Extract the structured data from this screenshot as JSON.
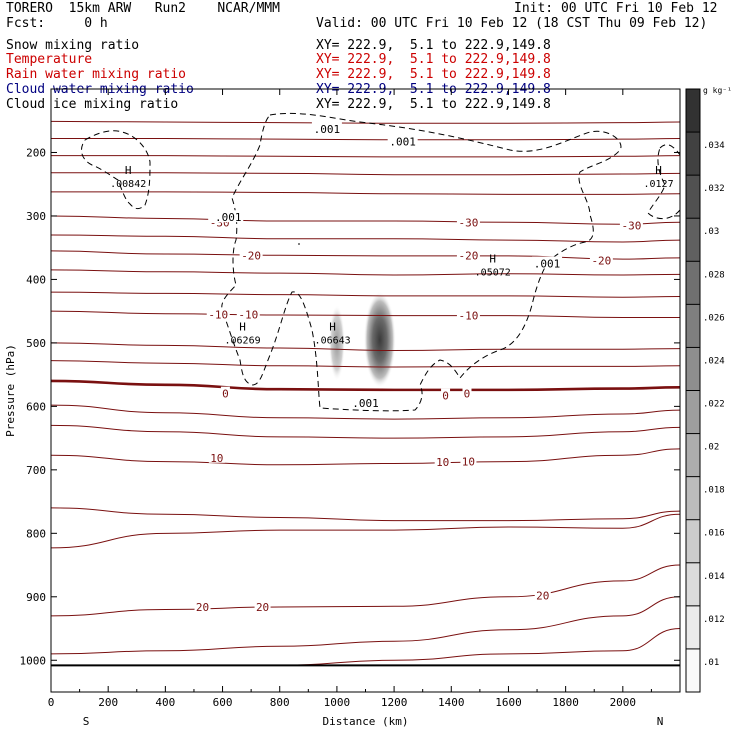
{
  "header": {
    "model_label": "TORERO  15km ARW   Run2    NCAR/MMM",
    "init_label": "Init: 00 UTC Fri 10 Feb 12",
    "forecast_label": "Fcst:     0 h",
    "valid_label": "Valid: 00 UTC Fri 10 Feb 12 (18 CST Thu 09 Feb 12)"
  },
  "fields": [
    {
      "name": "Snow mixing ratio",
      "color": "#000000",
      "xy": "XY= 222.9,  5.1 to 222.9,149.8"
    },
    {
      "name": "Temperature",
      "color": "#cc0000",
      "xy": "XY= 222.9,  5.1 to 222.9,149.8"
    },
    {
      "name": "Rain water mixing ratio",
      "color": "#cc0000",
      "xy": "XY= 222.9,  5.1 to 222.9,149.8"
    },
    {
      "name": "Cloud water mixing ratio",
      "color": "#000080",
      "xy": "XY= 222.9,  5.1 to 222.9,149.8"
    },
    {
      "name": "Cloud ice mixing ratio",
      "color": "#000000",
      "xy": "XY= 222.9,  5.1 to 222.9,149.8"
    }
  ],
  "chart_data": {
    "type": "contour cross-section",
    "title": "",
    "xlabel": "Distance (km)",
    "ylabel": "Pressure (hPa)",
    "xlim": [
      0,
      2200
    ],
    "ylim": [
      1050,
      100
    ],
    "x_ticks": [
      0,
      200,
      400,
      600,
      800,
      1000,
      1200,
      1400,
      1600,
      1800,
      2000
    ],
    "y_ticks": [
      200,
      300,
      400,
      500,
      600,
      700,
      800,
      900,
      1000
    ],
    "x_end_labels": {
      "left": "S",
      "right": "N"
    },
    "grid": false,
    "colorbar": {
      "unit": "g kg⁻¹",
      "ticks": [
        ".01",
        ".012",
        ".014",
        ".016",
        ".018",
        ".02",
        ".022",
        ".024",
        ".026",
        ".028",
        ".03",
        ".032",
        ".034"
      ]
    },
    "temperature_contour_labels": [
      {
        "label": "-30",
        "x": 590,
        "p": 310
      },
      {
        "label": "-30",
        "x": 1460,
        "p": 310
      },
      {
        "label": "-30",
        "x": 2030,
        "p": 315
      },
      {
        "label": "-20",
        "x": 700,
        "p": 362
      },
      {
        "label": "-20",
        "x": 1460,
        "p": 362
      },
      {
        "label": "-20",
        "x": 1925,
        "p": 370
      },
      {
        "label": "-10",
        "x": 585,
        "p": 455
      },
      {
        "label": "-10",
        "x": 690,
        "p": 455
      },
      {
        "label": "-10",
        "x": 1460,
        "p": 457
      },
      {
        "label": "0",
        "x": 610,
        "p": 580
      },
      {
        "label": "0",
        "x": 1380,
        "p": 583
      },
      {
        "label": "0",
        "x": 1455,
        "p": 580
      },
      {
        "label": "10",
        "x": 580,
        "p": 681
      },
      {
        "label": "10",
        "x": 1370,
        "p": 688
      },
      {
        "label": "10",
        "x": 1460,
        "p": 687
      },
      {
        "label": "20",
        "x": 530,
        "p": 916
      },
      {
        "label": "20",
        "x": 740,
        "p": 916
      },
      {
        "label": "20",
        "x": 1720,
        "p": 898
      }
    ],
    "cloud_ice_labels": [
      {
        "label": ".001",
        "x": 965,
        "p": 163
      },
      {
        "label": ".001",
        "x": 1230,
        "p": 183
      },
      {
        "label": ".001",
        "x": 620,
        "p": 302
      },
      {
        "label": ".001",
        "x": 1735,
        "p": 375
      },
      {
        "label": ".001",
        "x": 1100,
        "p": 595
      }
    ],
    "maxima": [
      {
        "label": "H",
        "value": ".00842",
        "x": 270,
        "p": 243
      },
      {
        "label": "H",
        "value": ".06269",
        "x": 670,
        "p": 490
      },
      {
        "label": "H",
        "value": ".06643",
        "x": 985,
        "p": 490
      },
      {
        "label": "H",
        "value": ".05072",
        "x": 1545,
        "p": 383
      },
      {
        "label": "H",
        "value": ".0127",
        "x": 2125,
        "p": 243
      }
    ],
    "rain_shading": [
      {
        "x": 1150,
        "p": 495,
        "peak": 0.036
      },
      {
        "x": 1000,
        "p": 500,
        "peak": 0.022
      }
    ],
    "isotherms_p_at_x": {
      "x": [
        0,
        400,
        800,
        1200,
        1600,
        2000,
        2200
      ],
      "lines": [
        {
          "t": -40,
          "p": [
            151,
            152,
            153,
            154,
            154,
            153,
            152
          ]
        },
        {
          "t": -35,
          "p": [
            178,
            178,
            179,
            180,
            180,
            179,
            178
          ]
        },
        {
          "t": -33,
          "p": [
            205,
            205,
            206,
            207,
            207,
            206,
            205
          ]
        },
        {
          "t": -32,
          "p": [
            232,
            232,
            233,
            235,
            235,
            234,
            233
          ]
        },
        {
          "t": -31,
          "p": [
            262,
            262,
            263,
            265,
            266,
            266,
            265
          ]
        },
        {
          "t": -30,
          "p": [
            300,
            304,
            308,
            308,
            310,
            313,
            310
          ]
        },
        {
          "t": -25,
          "p": [
            330,
            332,
            336,
            336,
            338,
            341,
            338
          ]
        },
        {
          "t": -20,
          "p": [
            355,
            360,
            362,
            363,
            363,
            368,
            366
          ]
        },
        {
          "t": -15,
          "p": [
            385,
            388,
            390,
            393,
            391,
            393,
            392
          ]
        },
        {
          "t": -12,
          "p": [
            420,
            422,
            424,
            426,
            426,
            428,
            427
          ]
        },
        {
          "t": -10,
          "p": [
            450,
            454,
            456,
            457,
            457,
            460,
            460
          ]
        },
        {
          "t": -5,
          "p": [
            500,
            504,
            508,
            512,
            510,
            510,
            509
          ]
        },
        {
          "t": -2,
          "p": [
            528,
            532,
            536,
            538,
            537,
            537,
            536
          ]
        },
        {
          "t": 0,
          "p": [
            560,
            566,
            573,
            574,
            574,
            572,
            570
          ]
        },
        {
          "t": 3,
          "p": [
            598,
            610,
            618,
            620,
            618,
            612,
            606
          ]
        },
        {
          "t": 5,
          "p": [
            630,
            640,
            648,
            650,
            648,
            640,
            633
          ]
        },
        {
          "t": 10,
          "p": [
            677,
            687,
            692,
            690,
            687,
            677,
            667
          ]
        },
        {
          "t": 15,
          "p": [
            760,
            770,
            775,
            780,
            780,
            777,
            765
          ]
        },
        {
          "t": 17,
          "p": [
            823,
            800,
            795,
            795,
            790,
            792,
            770
          ]
        },
        {
          "t": 20,
          "p": [
            930,
            920,
            916,
            915,
            900,
            875,
            850
          ]
        },
        {
          "t": 25,
          "p": [
            990,
            985,
            978,
            970,
            952,
            930,
            900
          ]
        },
        {
          "t": 30,
          "p": [
            1008,
            1008,
            1008,
            1000,
            990,
            985,
            950
          ]
        }
      ]
    }
  }
}
